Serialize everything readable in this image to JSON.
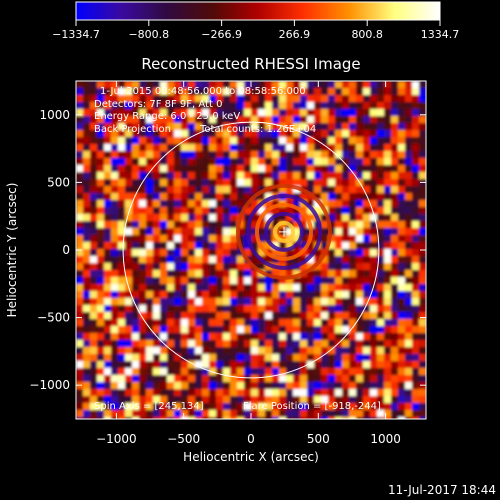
{
  "chart_data": {
    "type": "heatmap",
    "title": "Reconstructed RHESSI Image",
    "xlabel": "Heliocentric X (arcsec)",
    "ylabel": "Heliocentric Y (arcsec)",
    "xlim": [
      -1300,
      1300
    ],
    "ylim": [
      -1250,
      1250
    ],
    "x_ticks": [
      -1000,
      -500,
      0,
      500,
      1000
    ],
    "y_ticks": [
      -1000,
      -500,
      0,
      500,
      1000
    ],
    "x_tick_labels": [
      "−1000",
      "−500",
      "0",
      "500",
      "1000"
    ],
    "y_tick_labels": [
      "−1000",
      "−500",
      "0",
      "500",
      "1000"
    ],
    "colorbar": {
      "range": [
        -1334.7,
        1334.7
      ],
      "tick_values": [
        -1334.7,
        -800.8,
        -266.9,
        266.9,
        800.8,
        1334.7
      ],
      "tick_labels": [
        "−1334.7",
        "−800.8",
        "−266.9",
        "266.9",
        "800.8",
        "1334.7"
      ],
      "colormap_stops": [
        "#0000ff",
        "#3a0aa0",
        "#300a40",
        "#500a08",
        "#b00000",
        "#ff3000",
        "#ff9000",
        "#ffff80",
        "#ffffff"
      ]
    },
    "solar_disk_radius_arcsec": 950,
    "disk_color": "#ffffff",
    "source_center_arcsec": [
      245,
      134
    ],
    "annotations": {
      "time_range": "1-Jul-2015 08:48:56.000 to 08:58:56.000",
      "detectors": "Detectors: 7F 8F 9F, Att 0",
      "energy_range": "Energy Range: 6.0 - 25.0 keV",
      "method": "Back Projection",
      "total_counts": "Total counts: 1.26E+04",
      "spin_axis": "Spin Axis = [245,134]",
      "flare_position": "Flare Position = [-918,-244]"
    },
    "timestamp": "11-Jul-2017 18:44"
  }
}
